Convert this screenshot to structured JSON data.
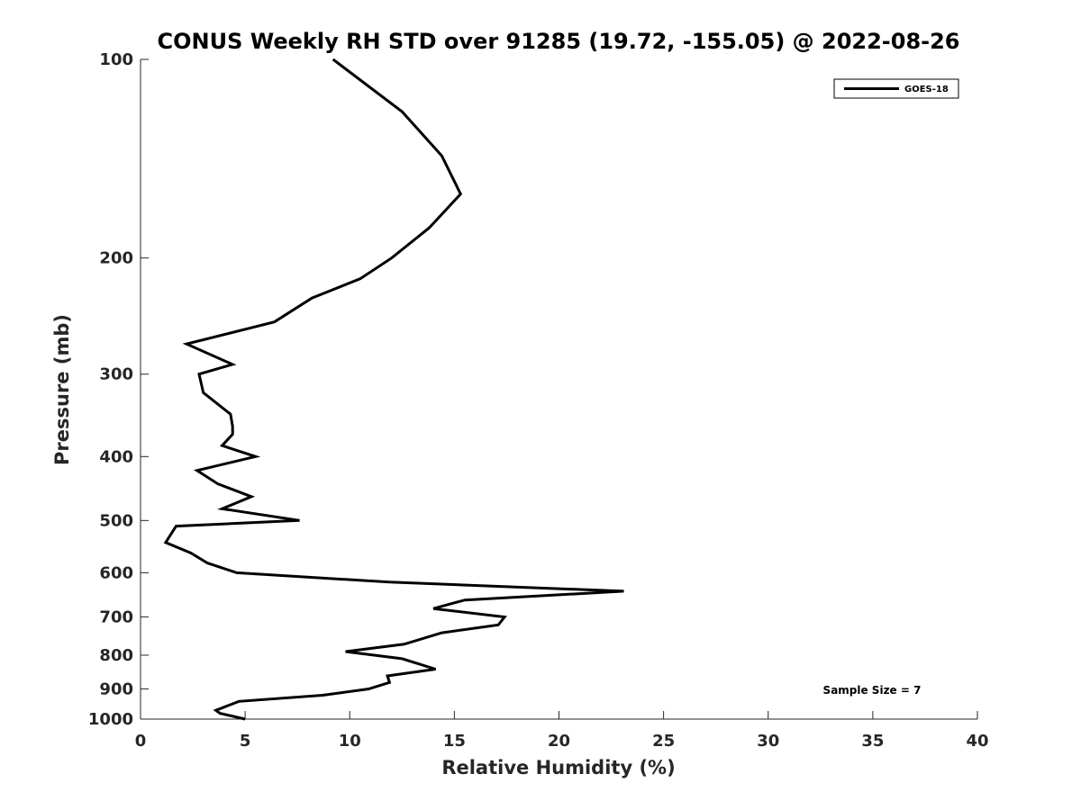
{
  "chart_data": {
    "type": "line",
    "title": "CONUS Weekly RH STD over 91285 (19.72, -155.05) @ 2022-08-26",
    "xlabel": "Relative Humidity (%)",
    "ylabel": "Pressure (mb)",
    "xlim": [
      0,
      40
    ],
    "ylim": [
      100,
      1000
    ],
    "y_scale": "log",
    "y_reversed": true,
    "grid": false,
    "legend_position": "top-right",
    "xticks": [
      0,
      5,
      10,
      15,
      20,
      25,
      30,
      35,
      40
    ],
    "yticks": [
      100,
      200,
      300,
      400,
      500,
      600,
      700,
      800,
      900,
      1000
    ],
    "series": [
      {
        "name": "GOES-18",
        "color": "#000000",
        "x": [
          9.2,
          12.5,
          14.4,
          15.3,
          13.8,
          12.0,
          10.5,
          8.2,
          6.4,
          2.2,
          4.4,
          2.8,
          3.0,
          4.3,
          4.4,
          4.4,
          3.9,
          5.5,
          2.7,
          3.7,
          5.3,
          3.9,
          7.6,
          1.7,
          1.2,
          2.4,
          3.2,
          4.6,
          11.9,
          23.1,
          15.5,
          14.0,
          17.4,
          17.1,
          14.4,
          12.6,
          9.8,
          12.5,
          14.1,
          11.8,
          11.9,
          10.9,
          8.7,
          4.7,
          3.6,
          3.8,
          5.0
        ],
        "y": [
          100,
          120,
          140,
          160,
          180,
          200,
          215,
          230,
          250,
          270,
          290,
          300,
          320,
          345,
          360,
          370,
          385,
          400,
          420,
          440,
          460,
          480,
          500,
          510,
          540,
          560,
          580,
          600,
          620,
          640,
          660,
          680,
          700,
          720,
          740,
          770,
          790,
          810,
          840,
          860,
          880,
          900,
          920,
          940,
          970,
          980,
          1000
        ]
      }
    ],
    "annotations": [
      "Sample Size = 7"
    ]
  }
}
